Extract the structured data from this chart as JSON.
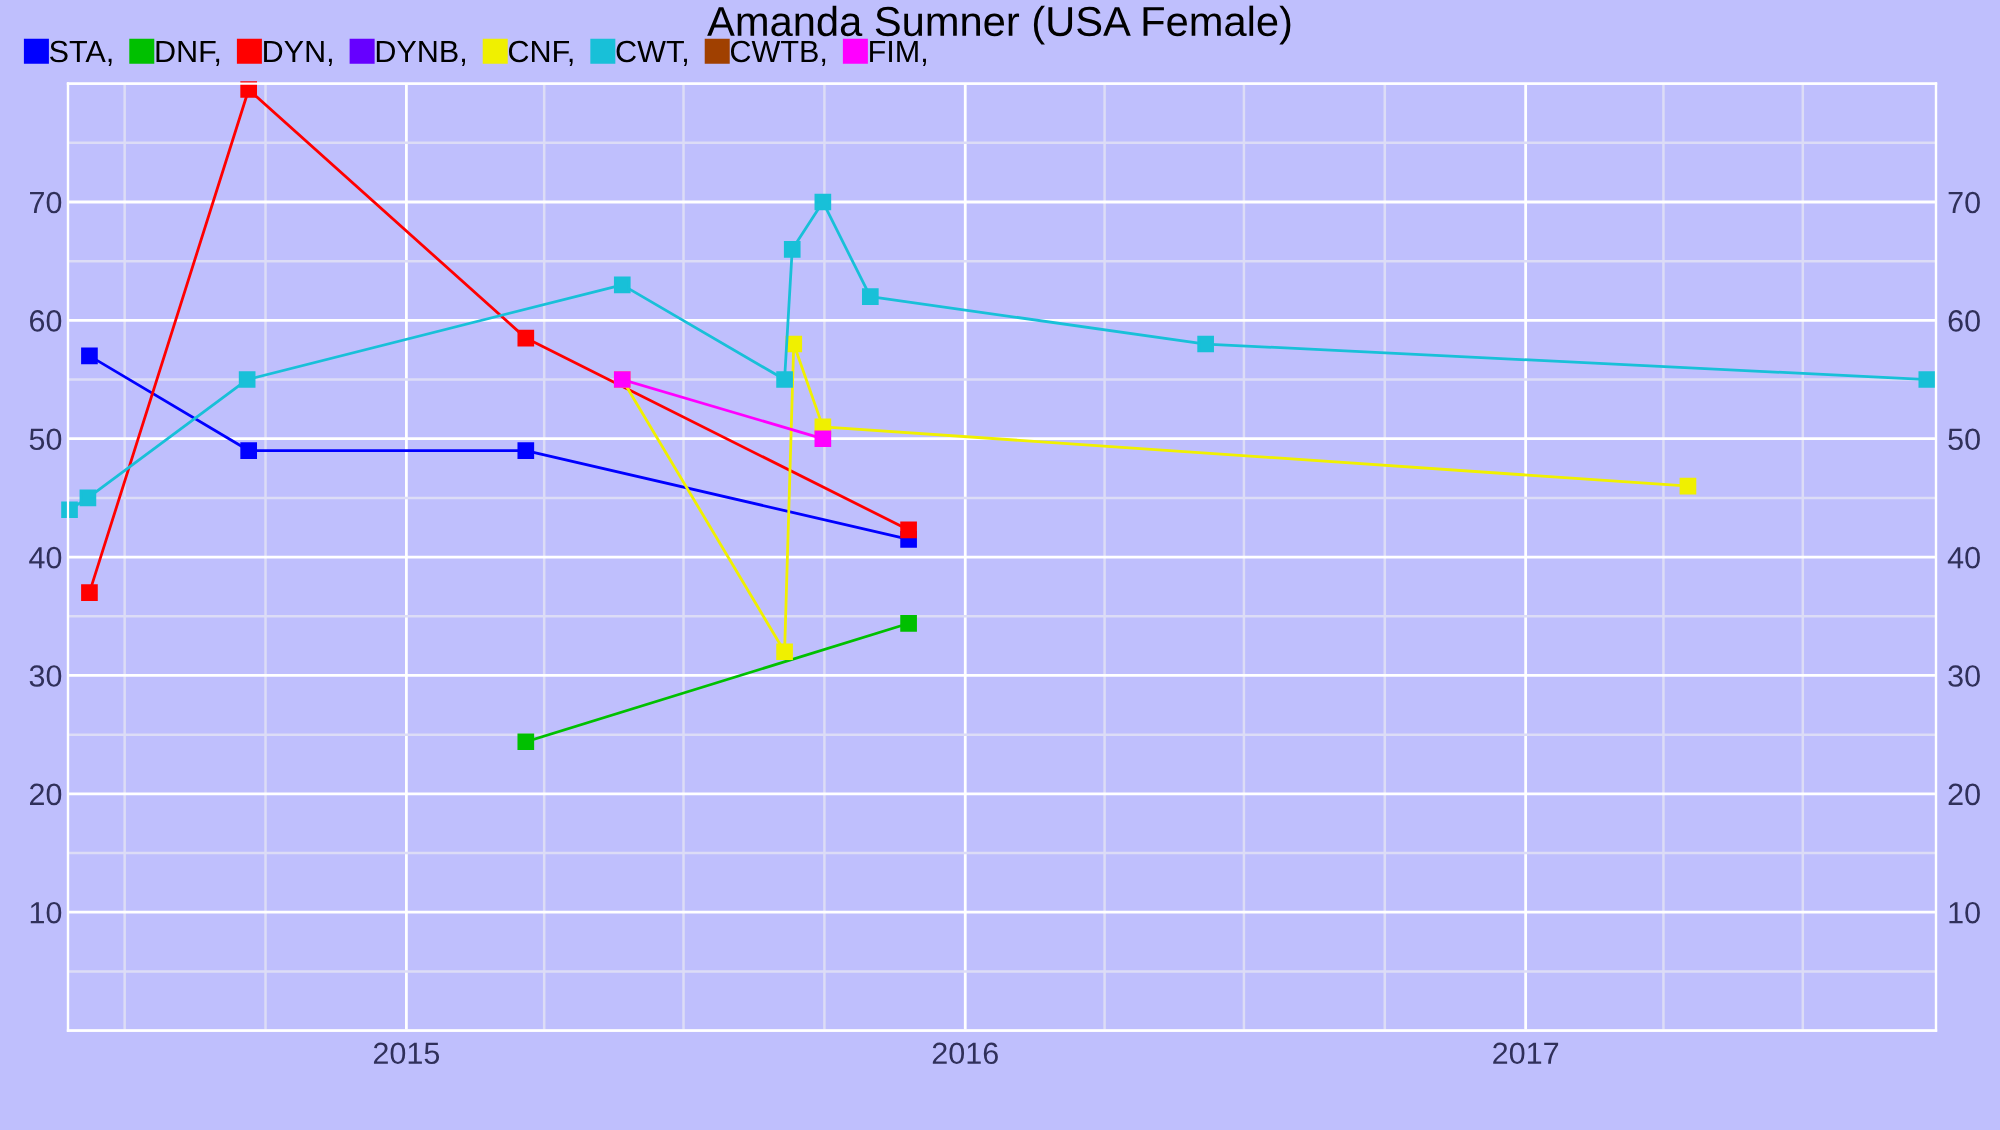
{
  "chart_data": {
    "type": "line",
    "title": "Amanda Sumner (USA Female)",
    "xlim": [
      "2014-05-25",
      "2017-09-26"
    ],
    "xticks": [
      "2015",
      "2016",
      "2017"
    ],
    "ylim": [
      0,
      80
    ],
    "yticks": [
      10,
      20,
      30,
      40,
      50,
      60,
      70
    ],
    "y2lim": [
      0,
      80
    ],
    "y2ticks": [
      10,
      20,
      30,
      40,
      50,
      60,
      70
    ],
    "grid": true,
    "legend": "top left",
    "marker": "square",
    "line_style": "solid",
    "series": [
      {
        "name": "STA,",
        "color": "#0000ff",
        "x": [
          "2014-06-08",
          "2014-09-20",
          "2015-03-20",
          "2015-11-25"
        ],
        "values": [
          57,
          49,
          49,
          41.5
        ]
      },
      {
        "name": "DNF,",
        "color": "#00c000",
        "x": [
          "2015-03-20",
          "2015-11-25"
        ],
        "values": [
          24.4,
          34.4
        ]
      },
      {
        "name": "DYN,",
        "color": "#ff0000",
        "x": [
          "2014-06-08",
          "2014-09-20",
          "2015-03-20",
          "2015-11-25"
        ],
        "values": [
          37,
          79.5,
          58.5,
          42.3
        ]
      },
      {
        "name": "DYNB,",
        "color": "#6600ff"
      },
      {
        "name": "CNF,",
        "color": "#f0f000",
        "x": [
          "2015-05-22",
          "2015-09-05",
          "2015-09-11",
          "2015-09-30",
          "2017-04-17"
        ],
        "values": [
          55,
          32,
          58,
          51,
          46
        ]
      },
      {
        "name": "CWT,",
        "color": "#18c0d8",
        "x": [
          "2014-05-26",
          "2014-06-07",
          "2014-09-19",
          "2015-05-22",
          "2015-09-05",
          "2015-09-10",
          "2015-09-30",
          "2015-10-31",
          "2016-06-06",
          "2017-09-20"
        ],
        "values": [
          44,
          45,
          55,
          63,
          55,
          66,
          70,
          62,
          58,
          55
        ]
      },
      {
        "name": "CWTB,",
        "color": "#a04000"
      },
      {
        "name": "FIM,",
        "color": "#ff00ff",
        "x": [
          "2015-05-22",
          "2015-09-30"
        ],
        "values": [
          55,
          50
        ]
      }
    ]
  }
}
